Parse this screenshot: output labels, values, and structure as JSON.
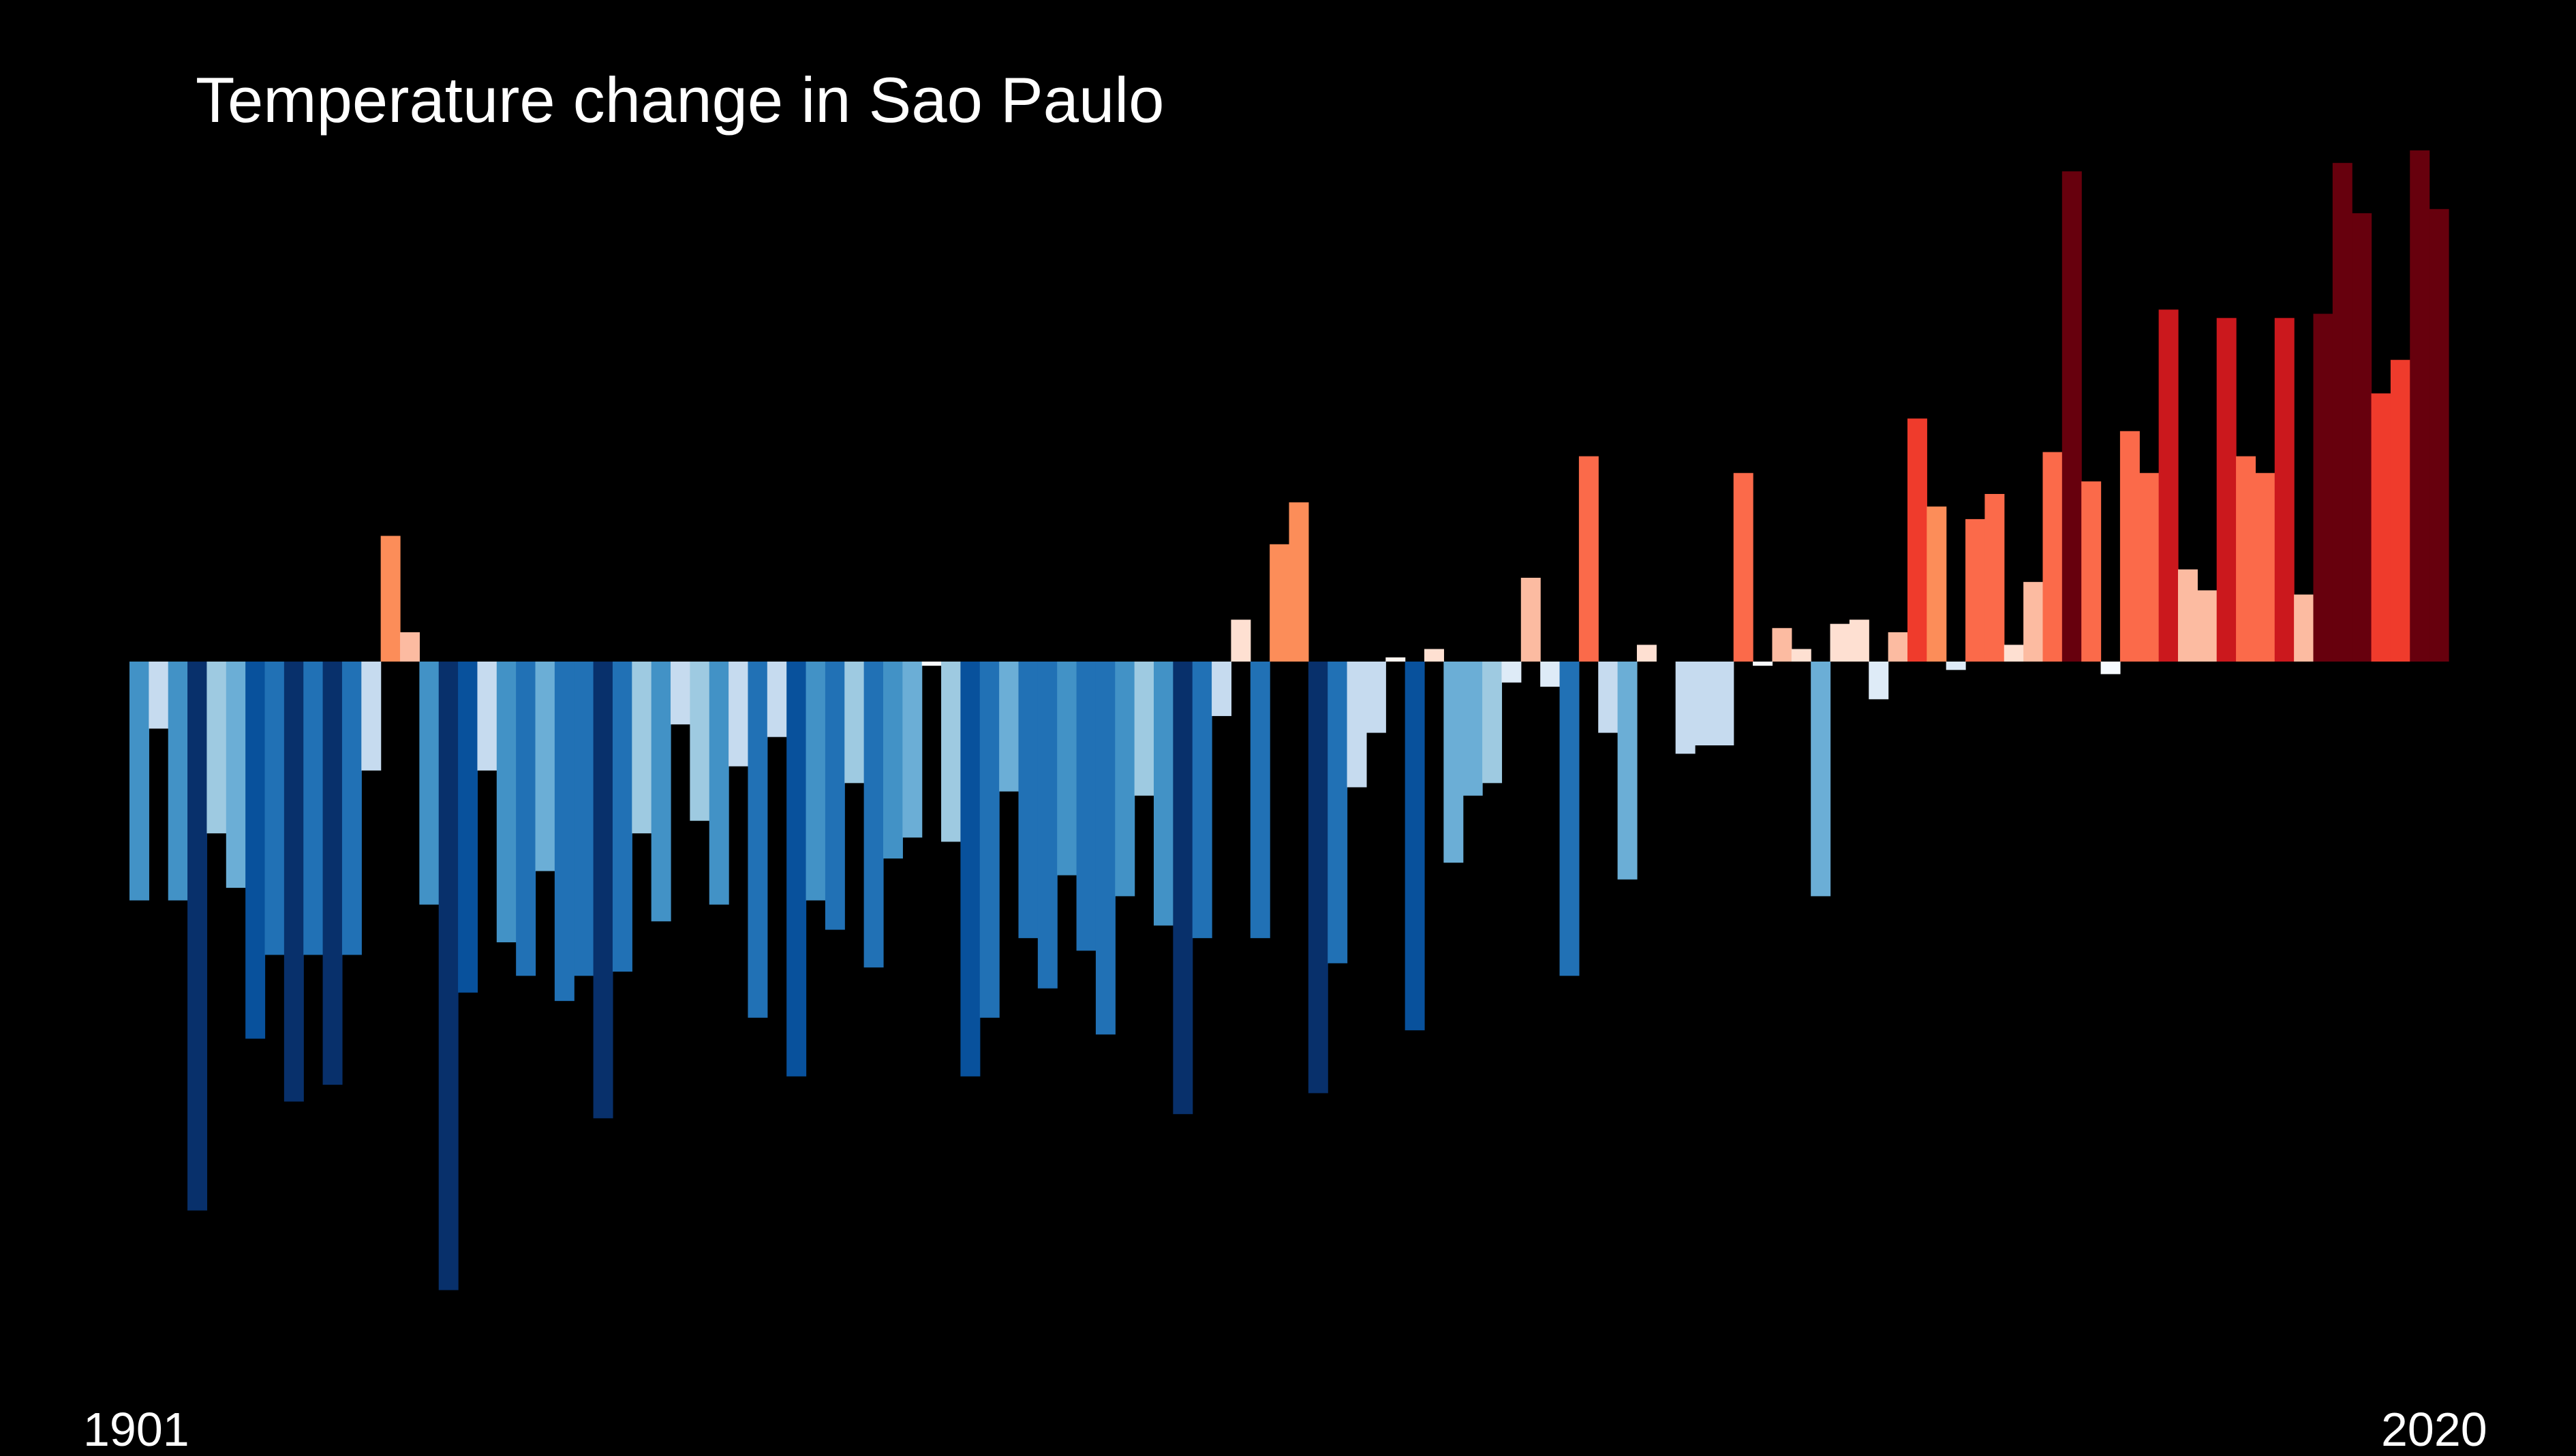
{
  "chart_data": {
    "type": "bar",
    "title": "Temperature change in Sao Paulo",
    "x_start_label": "1901",
    "x_end_label": "2020",
    "x_range": [
      1901,
      2020
    ],
    "ylim": [
      -1.5,
      1.3
    ],
    "grid": false,
    "legend": "none",
    "color_scale": "blue (cooler) to red (warmer)",
    "x": [
      1901,
      1902,
      1903,
      1904,
      1905,
      1906,
      1907,
      1908,
      1909,
      1910,
      1911,
      1912,
      1913,
      1914,
      1915,
      1916,
      1917,
      1918,
      1919,
      1920,
      1921,
      1922,
      1923,
      1924,
      1925,
      1926,
      1927,
      1928,
      1929,
      1930,
      1931,
      1932,
      1933,
      1934,
      1935,
      1936,
      1937,
      1938,
      1939,
      1940,
      1941,
      1942,
      1943,
      1944,
      1945,
      1946,
      1947,
      1948,
      1949,
      1950,
      1951,
      1952,
      1953,
      1954,
      1955,
      1956,
      1957,
      1958,
      1959,
      1960,
      1961,
      1962,
      1963,
      1964,
      1965,
      1966,
      1967,
      1968,
      1969,
      1970,
      1971,
      1972,
      1973,
      1974,
      1975,
      1976,
      1977,
      1978,
      1979,
      1980,
      1981,
      1982,
      1983,
      1984,
      1985,
      1986,
      1987,
      1988,
      1989,
      1990,
      1991,
      1992,
      1993,
      1994,
      1995,
      1996,
      1997,
      1998,
      1999,
      2000,
      2001,
      2002,
      2003,
      2004,
      2005,
      2006,
      2007,
      2008,
      2009,
      2010,
      2011,
      2012,
      2013,
      2014,
      2015,
      2016,
      2017,
      2018,
      2019,
      2020
    ],
    "values": [
      -0.57,
      -0.16,
      -0.57,
      -1.31,
      -0.41,
      -0.54,
      -0.9,
      -0.7,
      -1.05,
      -0.7,
      -1.01,
      -0.7,
      -0.26,
      0.3,
      0.07,
      -0.58,
      -1.5,
      -0.79,
      -0.26,
      -0.67,
      -0.75,
      -0.5,
      -0.81,
      -0.75,
      -1.09,
      -0.74,
      -0.41,
      -0.62,
      -0.15,
      -0.38,
      -0.58,
      -0.25,
      -0.85,
      -0.18,
      -0.99,
      -0.57,
      -0.64,
      -0.29,
      -0.73,
      -0.47,
      -0.42,
      -0.01,
      -0.43,
      -0.99,
      -0.85,
      -0.31,
      -0.66,
      -0.78,
      -0.51,
      -0.69,
      -0.89,
      -0.56,
      -0.32,
      -0.63,
      -1.08,
      -0.66,
      -0.13,
      0.1,
      -0.66,
      0.28,
      0.38,
      -1.03,
      -0.72,
      -0.3,
      -0.17,
      0.01,
      -0.88,
      0.03,
      -0.48,
      -0.32,
      -0.29,
      -0.05,
      0.2,
      -0.06,
      -0.75,
      0.49,
      -0.17,
      -0.52,
      0.04,
      0.0,
      -0.22,
      -0.2,
      -0.2,
      0.45,
      -0.01,
      0.08,
      0.03,
      -0.56,
      0.09,
      0.1,
      -0.09,
      0.07,
      0.58,
      0.37,
      -0.02,
      0.34,
      0.4,
      0.04,
      0.19,
      0.5,
      1.17,
      0.43,
      -0.03,
      0.55,
      0.45,
      0.84,
      0.22,
      0.17,
      0.82,
      0.49,
      0.45,
      0.82,
      0.16,
      0.83,
      1.19,
      1.07,
      0.64,
      0.72,
      1.22,
      1.08
    ],
    "colors": [
      "#4292c6",
      "#c6dbef",
      "#4292c6",
      "#08306b",
      "#9ecae1",
      "#6baed6",
      "#08519c",
      "#2171b5",
      "#08306b",
      "#2171b5",
      "#08306b",
      "#2171b5",
      "#c6dbef",
      "#fc8d59",
      "#fcbba1",
      "#4292c6",
      "#08306b",
      "#08519c",
      "#c6dbef",
      "#4292c6",
      "#2171b5",
      "#6baed6",
      "#2171b5",
      "#2171b5",
      "#08306b",
      "#2171b5",
      "#9ecae1",
      "#4292c6",
      "#c6dbef",
      "#9ecae1",
      "#4292c6",
      "#c6dbef",
      "#2171b5",
      "#c6dbef",
      "#08519c",
      "#4292c6",
      "#2171b5",
      "#9ecae1",
      "#2171b5",
      "#4292c6",
      "#6baed6",
      "#f7fbff",
      "#9ecae1",
      "#08519c",
      "#2171b5",
      "#6baed6",
      "#2171b5",
      "#2171b5",
      "#4292c6",
      "#2171b5",
      "#2171b5",
      "#4292c6",
      "#9ecae1",
      "#4292c6",
      "#08306b",
      "#2171b5",
      "#c6dbef",
      "#fee0d2",
      "#2171b5",
      "#fc8d59",
      "#fc8d59",
      "#08306b",
      "#2171b5",
      "#c6dbef",
      "#c6dbef",
      "#fff5f0",
      "#08519c",
      "#fee0d2",
      "#6baed6",
      "#6baed6",
      "#9ecae1",
      "#deebf7",
      "#fcbba1",
      "#deebf7",
      "#2171b5",
      "#fb6a4a",
      "#c6dbef",
      "#6baed6",
      "#fee0d2",
      "#000000",
      "#c6dbef",
      "#c6dbef",
      "#c6dbef",
      "#fb6a4a",
      "#f7fbff",
      "#fcbba1",
      "#fee0d2",
      "#6baed6",
      "#fee0d2",
      "#fee0d2",
      "#deebf7",
      "#fcbba1",
      "#ef3b2c",
      "#fc8d59",
      "#deebf7",
      "#fb6a4a",
      "#fb6a4a",
      "#fee0d2",
      "#fcbba1",
      "#fb6a4a",
      "#67000d",
      "#fb6a4a",
      "#f7fbff",
      "#fb6a4a",
      "#fb6a4a",
      "#cb181d",
      "#fcbba1",
      "#fcbba1",
      "#cb181d",
      "#fb6a4a",
      "#fb6a4a",
      "#cb181d",
      "#fcbba1",
      "#67000d",
      "#67000d",
      "#67000d",
      "#ef3b2c",
      "#ef3b2c",
      "#67000d",
      "#67000d"
    ]
  }
}
